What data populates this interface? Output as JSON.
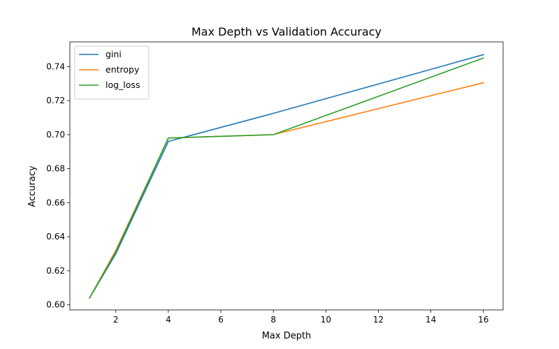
{
  "chart_data": {
    "type": "line",
    "title": "Max Depth vs Validation Accuracy",
    "xlabel": "Max Depth",
    "ylabel": "Accuracy",
    "x": [
      1,
      2,
      4,
      8,
      16
    ],
    "xlim": [
      0.25,
      16.75
    ],
    "ylim": [
      0.597,
      0.7545
    ],
    "xticks": [
      2,
      4,
      6,
      8,
      10,
      12,
      14,
      16
    ],
    "yticks": [
      0.6,
      0.62,
      0.64,
      0.66,
      0.68,
      0.7,
      0.72,
      0.74
    ],
    "ytick_labels": [
      "0.60",
      "0.62",
      "0.64",
      "0.66",
      "0.68",
      "0.70",
      "0.72",
      "0.74"
    ],
    "grid": false,
    "legend_position": "top-left",
    "series": [
      {
        "name": "gini",
        "color": "#1f77b4",
        "values": [
          0.604,
          0.63,
          0.696,
          0.7125,
          0.747
        ]
      },
      {
        "name": "entropy",
        "color": "#ff7f0e",
        "values": [
          0.604,
          0.632,
          0.698,
          0.7,
          0.7305
        ]
      },
      {
        "name": "log_loss",
        "color": "#2ca02c",
        "values": [
          0.604,
          0.631,
          0.698,
          0.7,
          0.745
        ]
      }
    ]
  }
}
